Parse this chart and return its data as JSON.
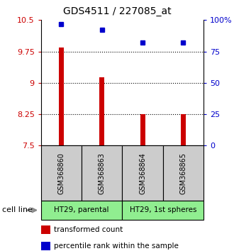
{
  "title": "GDS4511 / 227085_at",
  "samples": [
    "GSM368860",
    "GSM368863",
    "GSM368864",
    "GSM368865"
  ],
  "bar_values": [
    9.85,
    9.13,
    8.25,
    8.25
  ],
  "percentile_values": [
    97,
    92,
    82,
    82
  ],
  "ylim_left": [
    7.5,
    10.5
  ],
  "ylim_right": [
    0,
    100
  ],
  "yticks_left": [
    7.5,
    8.25,
    9,
    9.75,
    10.5
  ],
  "yticks_right": [
    0,
    25,
    50,
    75,
    100
  ],
  "ytick_labels_left": [
    "7.5",
    "8.25",
    "9",
    "9.75",
    "10.5"
  ],
  "ytick_labels_right": [
    "0",
    "25",
    "50",
    "75",
    "100%"
  ],
  "bar_color": "#cc0000",
  "dot_color": "#0000cc",
  "bar_width": 0.12,
  "cell_lines": [
    {
      "label": "HT29, parental",
      "samples": [
        0,
        1
      ],
      "color": "#90ee90"
    },
    {
      "label": "HT29, 1st spheres",
      "samples": [
        2,
        3
      ],
      "color": "#90ee90"
    }
  ],
  "cell_line_label": "cell line",
  "legend_items": [
    {
      "color": "#cc0000",
      "label": "transformed count"
    },
    {
      "color": "#0000cc",
      "label": "percentile rank within the sample"
    }
  ],
  "grid_yticks": [
    8.25,
    9,
    9.75
  ],
  "sample_box_color": "#cccccc",
  "baseline": 7.5,
  "bg_color": "#ffffff"
}
